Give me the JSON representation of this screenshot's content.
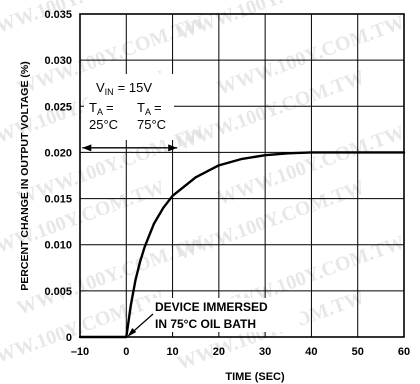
{
  "colors": {
    "background": "#ffffff",
    "ink": "#000000",
    "watermark": "#d8d8d8"
  },
  "watermark_text": "WWW.100Y.COM.TW",
  "chart_data": {
    "type": "line",
    "title": "",
    "xlabel": "TIME (SEC)",
    "ylabel": "PERCENT CHANGE IN OUTPUT VOLTAGE (%)",
    "xlim": [
      -10,
      60
    ],
    "ylim": [
      0,
      0.035
    ],
    "grid": true,
    "x_ticks": [
      -10,
      0,
      10,
      20,
      30,
      40,
      50,
      60
    ],
    "x_tick_labels": [
      "–10",
      "0",
      "10",
      "20",
      "30",
      "40",
      "50",
      "60"
    ],
    "y_ticks": [
      0,
      0.005,
      0.01,
      0.015,
      0.02,
      0.025,
      0.03,
      0.035
    ],
    "y_tick_labels": [
      "0",
      "0.005",
      "0.010",
      "0.015",
      "0.020",
      "0.025",
      "0.030",
      "0.035"
    ],
    "series": [
      {
        "x": [
          -10,
          0,
          1,
          2,
          3,
          4,
          6,
          8,
          10,
          15,
          20,
          25,
          30,
          35,
          40,
          50,
          60
        ],
        "y": [
          0,
          0,
          0.0035,
          0.0062,
          0.0082,
          0.0098,
          0.0123,
          0.014,
          0.0153,
          0.0173,
          0.0186,
          0.0193,
          0.0197,
          0.0199,
          0.02,
          0.02,
          0.02
        ]
      }
    ],
    "annotations": {
      "vin_label": "V",
      "vin_sub": "IN",
      "vin_value": "= 15V",
      "ta_left_label": "T",
      "ta_left_sub": "A",
      "ta_left_eq": "=",
      "ta_left_value": "25°C",
      "ta_right_label": "T",
      "ta_right_sub": "A",
      "ta_right_eq": "=",
      "ta_right_value": "75°C",
      "immersed_line1": "DEVICE IMMERSED",
      "immersed_line2": "IN 75°C OIL BATH"
    }
  }
}
